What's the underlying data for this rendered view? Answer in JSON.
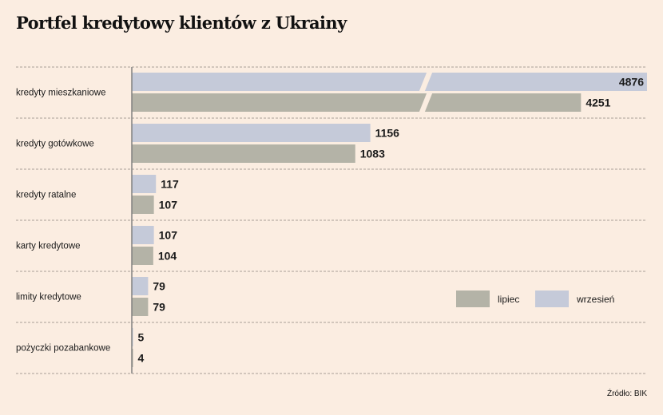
{
  "chart_data": {
    "type": "bar",
    "orientation": "horizontal",
    "title": "Portfel kredytowy klientów z Ukrainy",
    "source": "Źródło: BIK",
    "categories": [
      "kredyty mieszkaniowe",
      "kredyty gotówkowe",
      "kredyty ratalne",
      "karty kredytowe",
      "limity kredytowe",
      "pożyczki pozabankowe"
    ],
    "series": [
      {
        "name": "wrzesień",
        "color": "#c5cad9",
        "values": [
          4876,
          1156,
          117,
          107,
          79,
          5
        ]
      },
      {
        "name": "lipiec",
        "color": "#b4b3a7",
        "values": [
          4251,
          1083,
          107,
          104,
          79,
          4
        ]
      }
    ],
    "legend_order": [
      "lipiec",
      "wrzesień"
    ],
    "legend_position": "right",
    "axis_break": true,
    "grid": true
  }
}
